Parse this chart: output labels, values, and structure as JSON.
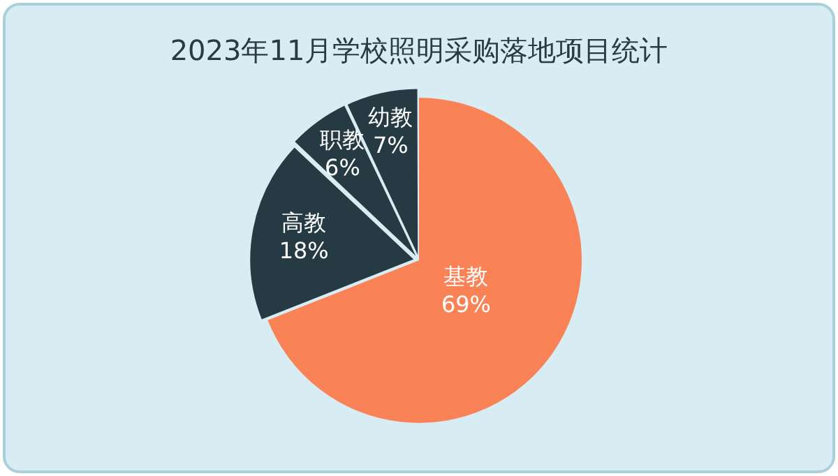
{
  "chart_data": {
    "type": "pie",
    "title": "2023年11月学校照明采购落地项目统计",
    "categories": [
      "基教",
      "高教",
      "职教",
      "幼教"
    ],
    "values": [
      69,
      18,
      6,
      7
    ],
    "colors": [
      "#f98257",
      "#253a42",
      "#253a42",
      "#253a42"
    ],
    "value_labels": [
      "69%",
      "18%",
      "6%",
      "7%"
    ],
    "legend": false
  }
}
